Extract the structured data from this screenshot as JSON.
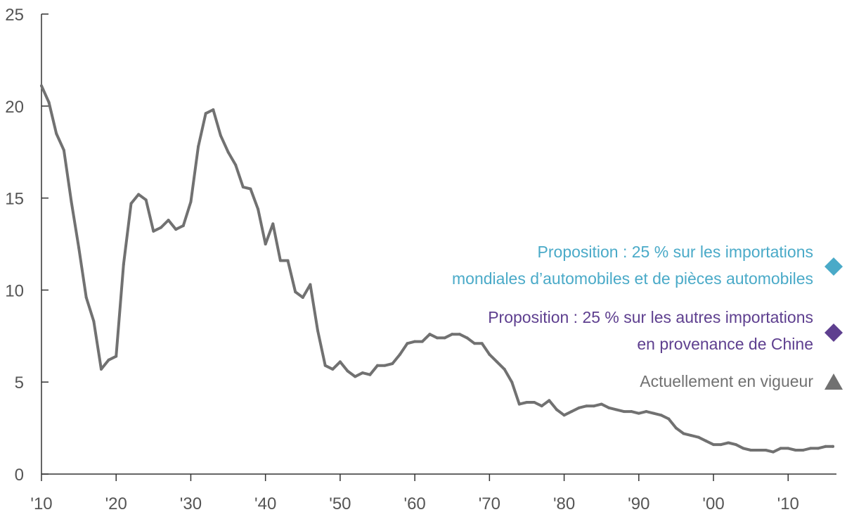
{
  "chart_data": {
    "type": "line",
    "xlabel": "",
    "ylabel": "",
    "xlim": [
      1910,
      2018
    ],
    "ylim": [
      0,
      25
    ],
    "y_ticks": [
      0,
      5,
      10,
      15,
      20,
      25
    ],
    "x_ticks": [
      {
        "value": 1910,
        "label": "'10"
      },
      {
        "value": 1920,
        "label": "'20"
      },
      {
        "value": 1930,
        "label": "'30"
      },
      {
        "value": 1940,
        "label": "'40"
      },
      {
        "value": 1950,
        "label": "'50"
      },
      {
        "value": 1960,
        "label": "'60"
      },
      {
        "value": 1970,
        "label": "'70"
      },
      {
        "value": 1980,
        "label": "'80"
      },
      {
        "value": 1990,
        "label": "'90"
      },
      {
        "value": 2000,
        "label": "'00"
      },
      {
        "value": 2010,
        "label": "'10"
      }
    ],
    "grid": false,
    "series": [
      {
        "color": "#717171",
        "x": [
          1910,
          1911,
          1912,
          1913,
          1914,
          1915,
          1916,
          1917,
          1918,
          1919,
          1920,
          1921,
          1922,
          1923,
          1924,
          1925,
          1926,
          1927,
          1928,
          1929,
          1930,
          1931,
          1932,
          1933,
          1934,
          1935,
          1936,
          1937,
          1938,
          1939,
          1940,
          1941,
          1942,
          1943,
          1944,
          1945,
          1946,
          1947,
          1948,
          1949,
          1950,
          1951,
          1952,
          1953,
          1954,
          1955,
          1956,
          1957,
          1958,
          1959,
          1960,
          1961,
          1962,
          1963,
          1964,
          1965,
          1966,
          1967,
          1968,
          1969,
          1970,
          1971,
          1972,
          1973,
          1974,
          1975,
          1976,
          1977,
          1978,
          1979,
          1980,
          1981,
          1982,
          1983,
          1984,
          1985,
          1986,
          1987,
          1988,
          1989,
          1990,
          1991,
          1992,
          1993,
          1994,
          1995,
          1996,
          1997,
          1998,
          1999,
          2000,
          2001,
          2002,
          2003,
          2004,
          2005,
          2006,
          2007,
          2008,
          2009,
          2010,
          2011,
          2012,
          2013,
          2014,
          2015,
          2016
        ],
        "y": [
          21.1,
          20.2,
          18.5,
          17.6,
          14.8,
          12.3,
          9.6,
          8.3,
          5.7,
          6.2,
          6.4,
          11.4,
          14.7,
          15.2,
          14.9,
          13.2,
          13.4,
          13.8,
          13.3,
          13.5,
          14.8,
          17.8,
          19.6,
          19.8,
          18.4,
          17.5,
          16.8,
          15.6,
          15.5,
          14.4,
          12.5,
          13.6,
          11.6,
          11.6,
          9.9,
          9.6,
          10.3,
          7.8,
          5.9,
          5.7,
          6.1,
          5.6,
          5.3,
          5.5,
          5.4,
          5.9,
          5.9,
          6.0,
          6.5,
          7.1,
          7.2,
          7.2,
          7.6,
          7.4,
          7.4,
          7.6,
          7.6,
          7.4,
          7.1,
          7.1,
          6.5,
          6.1,
          5.7,
          5.0,
          3.8,
          3.9,
          3.9,
          3.7,
          4.0,
          3.5,
          3.2,
          3.4,
          3.6,
          3.7,
          3.7,
          3.8,
          3.6,
          3.5,
          3.4,
          3.4,
          3.3,
          3.4,
          3.3,
          3.2,
          3.0,
          2.5,
          2.2,
          2.1,
          2.0,
          1.8,
          1.6,
          1.6,
          1.7,
          1.6,
          1.4,
          1.3,
          1.3,
          1.3,
          1.2,
          1.4,
          1.4,
          1.3,
          1.3,
          1.4,
          1.4,
          1.5,
          1.5
        ]
      }
    ],
    "annotations": [
      {
        "lines": [
          "Proposition : 25 % sur les importations",
          "mondiales d’automobiles et de pièces automobiles"
        ],
        "color": "#4aaac8",
        "marker": "diamond",
        "marker_color": "#4aaac8"
      },
      {
        "lines": [
          "Proposition : 25 % sur les autres importations",
          "en provenance de Chine"
        ],
        "color": "#5e3f8f",
        "marker": "diamond",
        "marker_color": "#5e3f8f"
      },
      {
        "lines": [
          "Actuellement en vigueur"
        ],
        "color": "#717171",
        "marker": "triangle",
        "marker_color": "#717171"
      }
    ]
  }
}
